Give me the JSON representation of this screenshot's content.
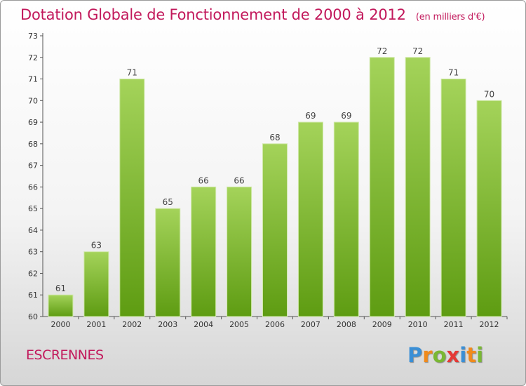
{
  "title": "Dotation Globale de Fonctionnement de 2000 à 2012",
  "subtitle": "(en milliers d'€)",
  "commune": "ESCRENNES",
  "logo": {
    "letters": [
      "P",
      "r",
      "o",
      "x",
      "i",
      "t",
      "i"
    ],
    "colors": [
      "#3a8fd6",
      "#f08a1c",
      "#7ab833",
      "#e53935",
      "#3a8fd6",
      "#f08a1c",
      "#7ab833"
    ]
  },
  "colors": {
    "accent": "#c2185b",
    "bar_top": "#a4d35a",
    "bar_bottom": "#5e9c12"
  },
  "chart_data": {
    "type": "bar",
    "title": "Dotation Globale de Fonctionnement de 2000 à 2012",
    "subtitle": "(en milliers d'€)",
    "categories": [
      "2000",
      "2001",
      "2002",
      "2003",
      "2004",
      "2005",
      "2006",
      "2007",
      "2008",
      "2009",
      "2010",
      "2011",
      "2012"
    ],
    "values": [
      61,
      63,
      71,
      65,
      66,
      66,
      68,
      69,
      69,
      72,
      72,
      71,
      70
    ],
    "ylim": [
      60,
      73
    ],
    "yticks": [
      60,
      61,
      62,
      63,
      64,
      65,
      66,
      67,
      68,
      69,
      70,
      71,
      72,
      73
    ],
    "grid": false,
    "legend": "none"
  }
}
